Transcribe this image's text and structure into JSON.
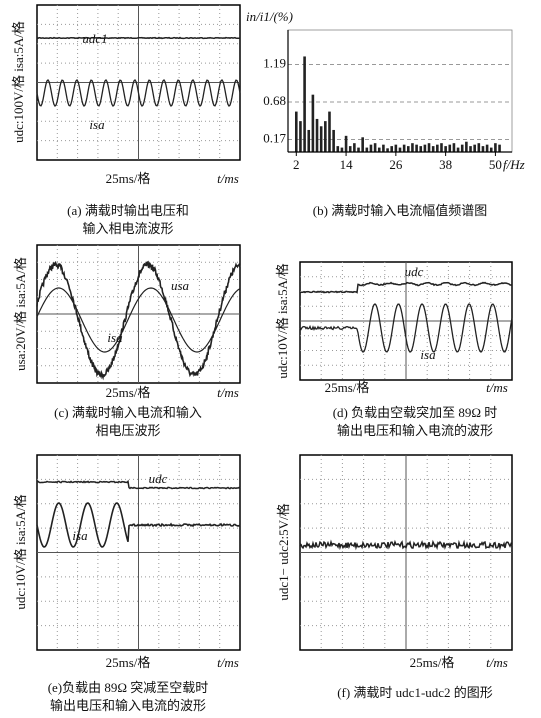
{
  "chart_data": {
    "type": "bar",
    "y_label": "in/i1/(%)",
    "x_label": "f/Hz",
    "x": [
      2,
      3,
      4,
      5,
      6,
      7,
      8,
      9,
      10,
      11,
      12,
      13,
      14,
      15,
      16,
      17,
      18,
      19,
      20,
      21,
      22,
      23,
      24,
      25,
      26,
      27,
      28,
      29,
      30,
      31,
      32,
      33,
      34,
      35,
      36,
      37,
      38,
      39,
      40,
      41,
      42,
      43,
      44,
      45,
      46,
      47,
      48,
      49,
      50,
      51
    ],
    "values": [
      0.55,
      0.42,
      1.3,
      0.3,
      0.78,
      0.45,
      0.35,
      0.42,
      0.55,
      0.3,
      0.08,
      0.06,
      0.22,
      0.08,
      0.12,
      0.06,
      0.2,
      0.06,
      0.1,
      0.12,
      0.06,
      0.1,
      0.05,
      0.08,
      0.1,
      0.06,
      0.1,
      0.08,
      0.12,
      0.1,
      0.08,
      0.1,
      0.12,
      0.08,
      0.1,
      0.12,
      0.08,
      0.1,
      0.12,
      0.06,
      0.1,
      0.14,
      0.08,
      0.1,
      0.12,
      0.08,
      0.1,
      0.06,
      0.12,
      0.1
    ],
    "color": "#222222",
    "xlim": [
      0,
      54
    ],
    "ylim": [
      0,
      1.66
    ],
    "xticks": [
      2,
      14,
      26,
      38,
      50
    ],
    "yticks": [
      0.17,
      0.68,
      1.19
    ],
    "grid": true
  },
  "panels": [
    {
      "y_label": "udc:100V/格 isa:5A/格",
      "trace_labels": [
        "udc1",
        "isa"
      ],
      "timebase": "25ms/格",
      "time_axis": "t/ms",
      "caption": [
        "(a) 满载时输出电压和",
        "输入相电流波形"
      ]
    },
    {
      "caption": [
        "(b) 满载时输入电流幅值频谱图"
      ]
    },
    {
      "y_label": "usa:20V/格 isa:5A/格",
      "trace_labels": [
        "usa",
        "isa"
      ],
      "timebase": "25ms/格",
      "time_axis": "t/ms",
      "caption": [
        "(c) 满载时输入电流和输入",
        "相电压波形"
      ]
    },
    {
      "y_label": "udc:10V/格 isa:5A/格",
      "trace_labels": [
        "udc",
        "isa"
      ],
      "timebase": "25ms/格",
      "time_axis": "t/ms",
      "caption": [
        "(d) 负载由空载突加至 89Ω 时",
        "输出电压和输入电流的波形"
      ]
    },
    {
      "y_label": "udc:10V/格 isa:5A/格",
      "trace_labels": [
        "udc",
        "isa"
      ],
      "timebase": "25ms/格",
      "time_axis": "t/ms",
      "caption": [
        "(e)负载由 89Ω 突减至空载时",
        "输出电压和输入电流的波形"
      ]
    },
    {
      "y_label": "udc1− udc2:5V/格",
      "timebase": "25ms/格",
      "time_axis": "t/ms",
      "caption": [
        "(f) 满载时 udc1-udc2 的图形"
      ]
    }
  ]
}
